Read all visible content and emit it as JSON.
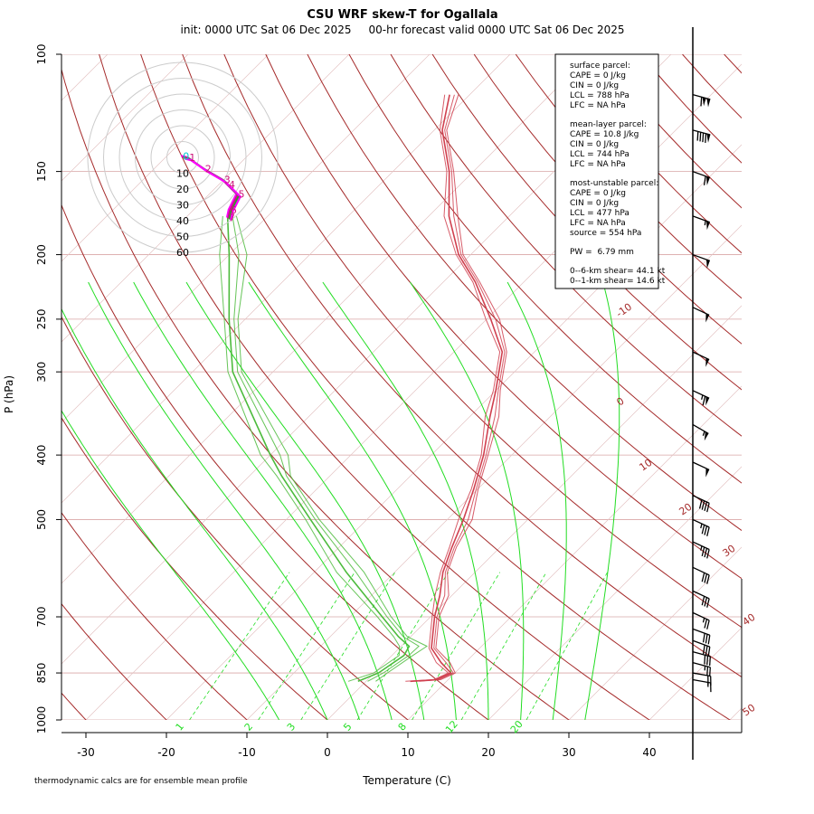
{
  "chart_data": {
    "type": "line",
    "title": "CSU WRF skew-T for Ogallala",
    "subtitle": "init: 0000 UTC Sat 06 Dec 2025     00-hr forecast valid 0000 UTC Sat 06 Dec 2025",
    "xlabel": "Temperature (C)",
    "ylabel": "P (hPa)",
    "x_ticks": [
      -30,
      -20,
      -10,
      0,
      10,
      20,
      30,
      40
    ],
    "y_ticks": [
      100,
      150,
      200,
      250,
      300,
      400,
      500,
      700,
      850,
      1000
    ],
    "ylim": [
      100,
      1000
    ],
    "log_pressure_axis": true,
    "footnote": "thermodynamic calcs are for ensemble mean profile",
    "isotherm_labels": [
      "-10",
      "0",
      "10",
      "20",
      "30",
      "40",
      "50"
    ],
    "mixing_ratio_labels": [
      "1",
      "2",
      "3",
      "5",
      "8",
      "12",
      "20"
    ],
    "hodograph_ring_labels": [
      "10",
      "20",
      "30",
      "40",
      "50",
      "60"
    ],
    "series": [
      {
        "role": "temperature",
        "color": "#d0404f",
        "points": [
          {
            "p": 875,
            "t": 5.5
          },
          {
            "p": 870,
            "t": 8.5
          },
          {
            "p": 850,
            "t": 9.5
          },
          {
            "p": 820,
            "t": 7.0
          },
          {
            "p": 780,
            "t": 4.0
          },
          {
            "p": 700,
            "t": 0.5
          },
          {
            "p": 650,
            "t": -1.5
          },
          {
            "p": 600,
            "t": -4.0
          },
          {
            "p": 550,
            "t": -6.0
          },
          {
            "p": 500,
            "t": -8.0
          },
          {
            "p": 450,
            "t": -10.5
          },
          {
            "p": 400,
            "t": -13.5
          },
          {
            "p": 350,
            "t": -17.5
          },
          {
            "p": 320,
            "t": -20.0
          },
          {
            "p": 280,
            "t": -24.0
          },
          {
            "p": 250,
            "t": -29.5
          },
          {
            "p": 220,
            "t": -36.0
          },
          {
            "p": 200,
            "t": -41.5
          },
          {
            "p": 175,
            "t": -47.5
          },
          {
            "p": 150,
            "t": -53.0
          },
          {
            "p": 130,
            "t": -59.0
          },
          {
            "p": 115,
            "t": -62.5
          }
        ]
      },
      {
        "role": "dewpoint",
        "color": "#4cbb3c",
        "points": [
          {
            "p": 875,
            "t": -1.0
          },
          {
            "p": 850,
            "t": 0.5
          },
          {
            "p": 800,
            "t": 1.5
          },
          {
            "p": 775,
            "t": 1.0
          },
          {
            "p": 750,
            "t": -1.5
          },
          {
            "p": 700,
            "t": -6.0
          },
          {
            "p": 600,
            "t": -16.0
          },
          {
            "p": 500,
            "t": -27.0
          },
          {
            "p": 430,
            "t": -36.0
          },
          {
            "p": 400,
            "t": -40.0
          },
          {
            "p": 300,
            "t": -55.0
          },
          {
            "p": 250,
            "t": -62.0
          },
          {
            "p": 200,
            "t": -70.0
          },
          {
            "p": 175,
            "t": -75.0
          }
        ]
      }
    ],
    "parcel_info": {
      "surface": {
        "header": "surface parcel:",
        "cape": "CAPE = 0 J/kg",
        "cin": "CIN = 0 J/kg",
        "lcl": "LCL = 788 hPa",
        "lfc": "LFC = NA hPa"
      },
      "mean_layer": {
        "header": "mean-layer parcel:",
        "cape": "CAPE = 10.8 J/kg",
        "cin": "CIN = 0 J/kg",
        "lcl": "LCL = 744 hPa",
        "lfc": "LFC = NA hPa"
      },
      "most_unstable": {
        "header": "most-unstable parcel:",
        "cape": "CAPE = 0 J/kg",
        "cin": "CIN = 0 J/kg",
        "lcl": "LCL = 477 hPa",
        "lfc": "LFC = NA hPa",
        "source": "source = 554 hPa"
      },
      "pw": "PW =  6.79 mm",
      "shear_06": "0--6-km shear= 44.1 kt",
      "shear_01": "0--1-km shear= 14.6 kt"
    },
    "wind_barbs": [
      {
        "p": 115,
        "spd": 110,
        "dir": 285
      },
      {
        "p": 130,
        "spd": 90,
        "dir": 285
      },
      {
        "p": 150,
        "spd": 60,
        "dir": 290
      },
      {
        "p": 175,
        "spd": 55,
        "dir": 290
      },
      {
        "p": 200,
        "spd": 50,
        "dir": 290
      },
      {
        "p": 240,
        "spd": 50,
        "dir": 295
      },
      {
        "p": 280,
        "spd": 50,
        "dir": 295
      },
      {
        "p": 320,
        "spd": 65,
        "dir": 295
      },
      {
        "p": 360,
        "spd": 55,
        "dir": 300
      },
      {
        "p": 410,
        "spd": 50,
        "dir": 295
      },
      {
        "p": 460,
        "spd": 40,
        "dir": 295
      },
      {
        "p": 500,
        "spd": 35,
        "dir": 295
      },
      {
        "p": 540,
        "spd": 35,
        "dir": 295
      },
      {
        "p": 590,
        "spd": 30,
        "dir": 295
      },
      {
        "p": 640,
        "spd": 30,
        "dir": 295
      },
      {
        "p": 690,
        "spd": 25,
        "dir": 295
      },
      {
        "p": 730,
        "spd": 30,
        "dir": 290
      },
      {
        "p": 760,
        "spd": 30,
        "dir": 290
      },
      {
        "p": 790,
        "spd": 30,
        "dir": 285
      },
      {
        "p": 820,
        "spd": 25,
        "dir": 285
      },
      {
        "p": 850,
        "spd": 20,
        "dir": 280
      },
      {
        "p": 870,
        "spd": 15,
        "dir": 280
      }
    ],
    "hodograph_points": [
      {
        "label": "0",
        "u": -1,
        "v": 1
      },
      {
        "label": "1",
        "u": 3,
        "v": 0
      },
      {
        "label": "2",
        "u": 13,
        "v": -7
      },
      {
        "label": "3",
        "u": 25,
        "v": -14
      },
      {
        "label": "4",
        "u": 28,
        "v": -17
      },
      {
        "label": "5",
        "u": 34,
        "v": -23
      },
      {
        "label": "6",
        "u": 29,
        "v": -33
      },
      {
        "label": "7",
        "u": 28,
        "v": -38
      }
    ]
  }
}
